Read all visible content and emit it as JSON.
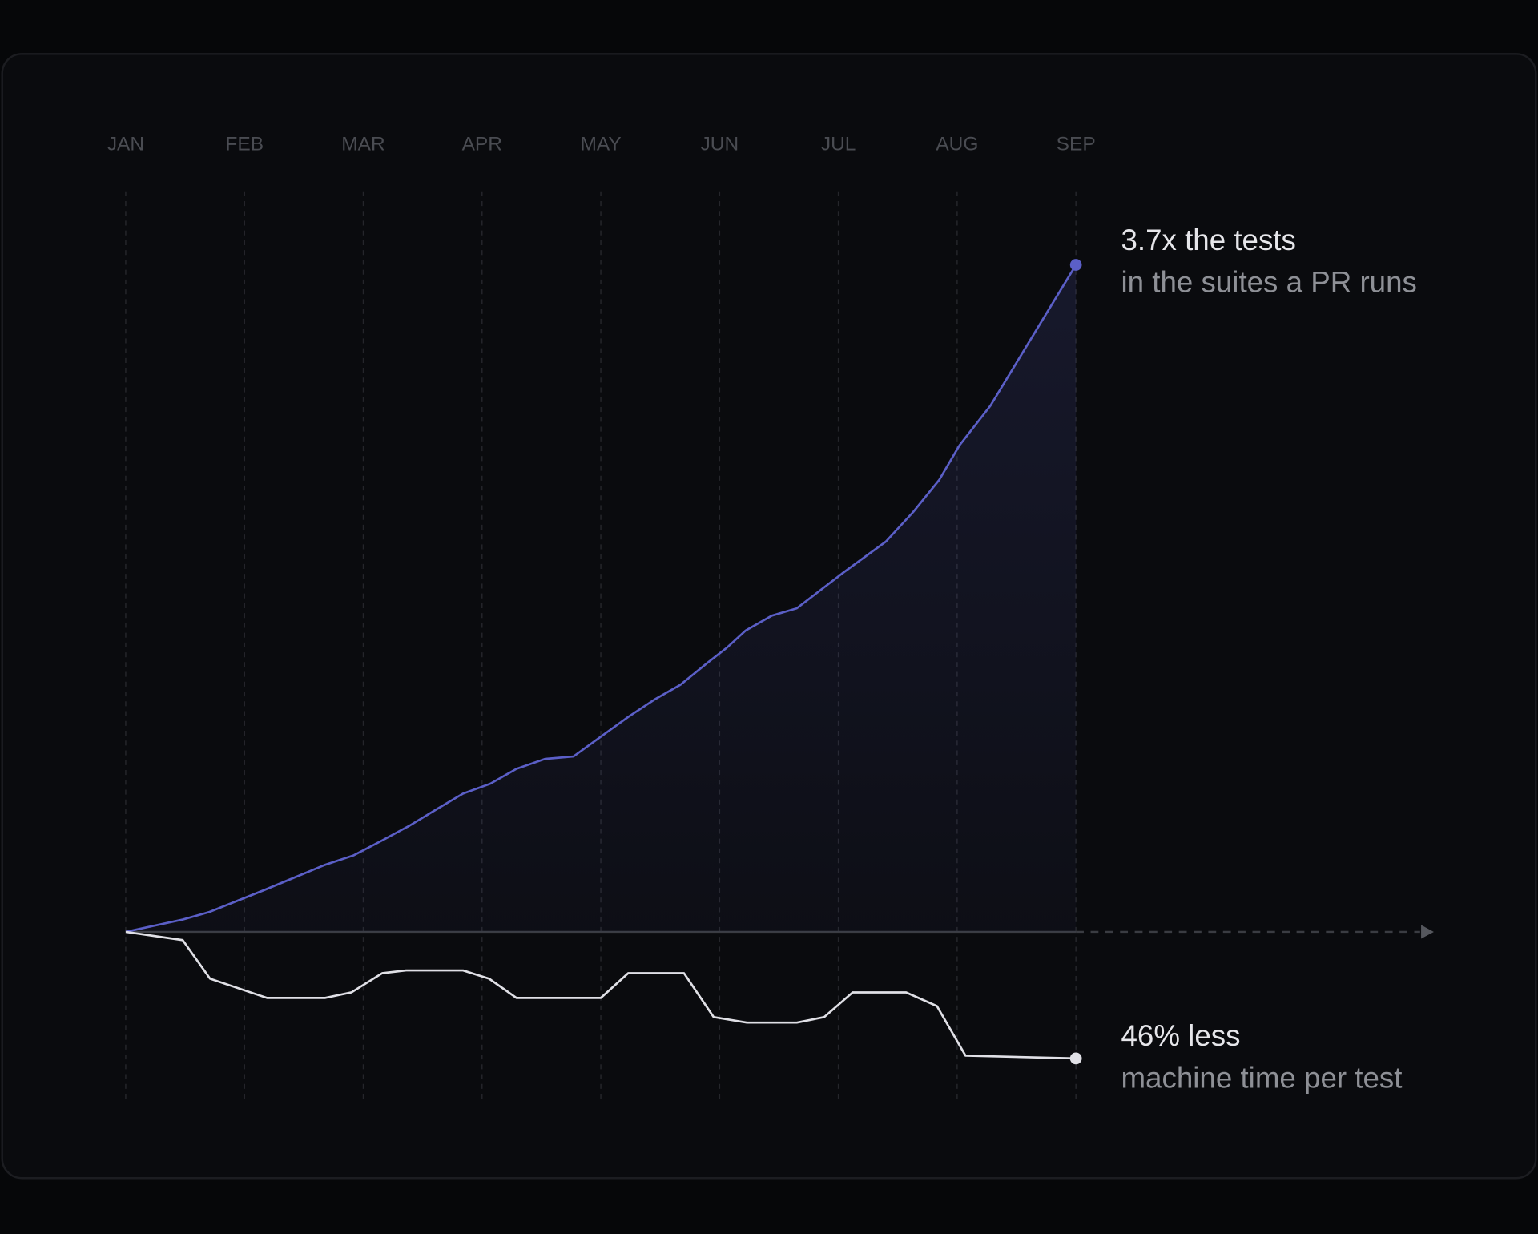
{
  "chart_data": {
    "type": "line",
    "categories": [
      "JAN",
      "FEB",
      "MAR",
      "APR",
      "MAY",
      "JUN",
      "JUL",
      "AUG",
      "SEP"
    ],
    "xlim": [
      0,
      8
    ],
    "ylim": [
      1,
      3.7
    ],
    "y2lim": [
      0.54,
      1
    ],
    "grid": true,
    "series": [
      {
        "color": "#5b5fc7",
        "x": [
          0,
          0.48,
          0.7,
          1.17,
          1.67,
          1.92,
          2.16,
          2.39,
          2.63,
          2.84,
          3.07,
          3.29,
          3.53,
          3.77,
          4.0,
          4.23,
          4.45,
          4.67,
          4.9,
          5.06,
          5.22,
          5.44,
          5.65,
          6.03,
          6.4,
          6.63,
          6.85,
          7.02,
          7.28,
          8.0
        ],
        "values": [
          1.0,
          1.05,
          1.08,
          1.17,
          1.27,
          1.31,
          1.37,
          1.43,
          1.5,
          1.56,
          1.6,
          1.66,
          1.7,
          1.71,
          1.79,
          1.87,
          1.94,
          2.0,
          2.09,
          2.15,
          2.22,
          2.28,
          2.31,
          2.45,
          2.58,
          2.7,
          2.83,
          2.97,
          3.13,
          3.7
        ]
      },
      {
        "color": "#e0e0e6",
        "axis": "y2",
        "x": [
          0,
          0.48,
          0.71,
          1.19,
          1.68,
          1.9,
          2.16,
          2.36,
          2.84,
          3.06,
          3.29,
          4.0,
          4.23,
          4.7,
          4.95,
          5.23,
          5.65,
          5.88,
          6.12,
          6.57,
          6.83,
          7.07,
          8.0
        ],
        "values": [
          1.0,
          0.97,
          0.83,
          0.76,
          0.76,
          0.78,
          0.85,
          0.86,
          0.86,
          0.83,
          0.76,
          0.76,
          0.85,
          0.85,
          0.69,
          0.67,
          0.67,
          0.69,
          0.78,
          0.78,
          0.73,
          0.55,
          0.54
        ]
      }
    ],
    "annotations": [
      {
        "title": "3.7x the tests",
        "text": "in the suites a PR runs"
      },
      {
        "title": "46% less",
        "text": "machine time per test"
      }
    ]
  }
}
